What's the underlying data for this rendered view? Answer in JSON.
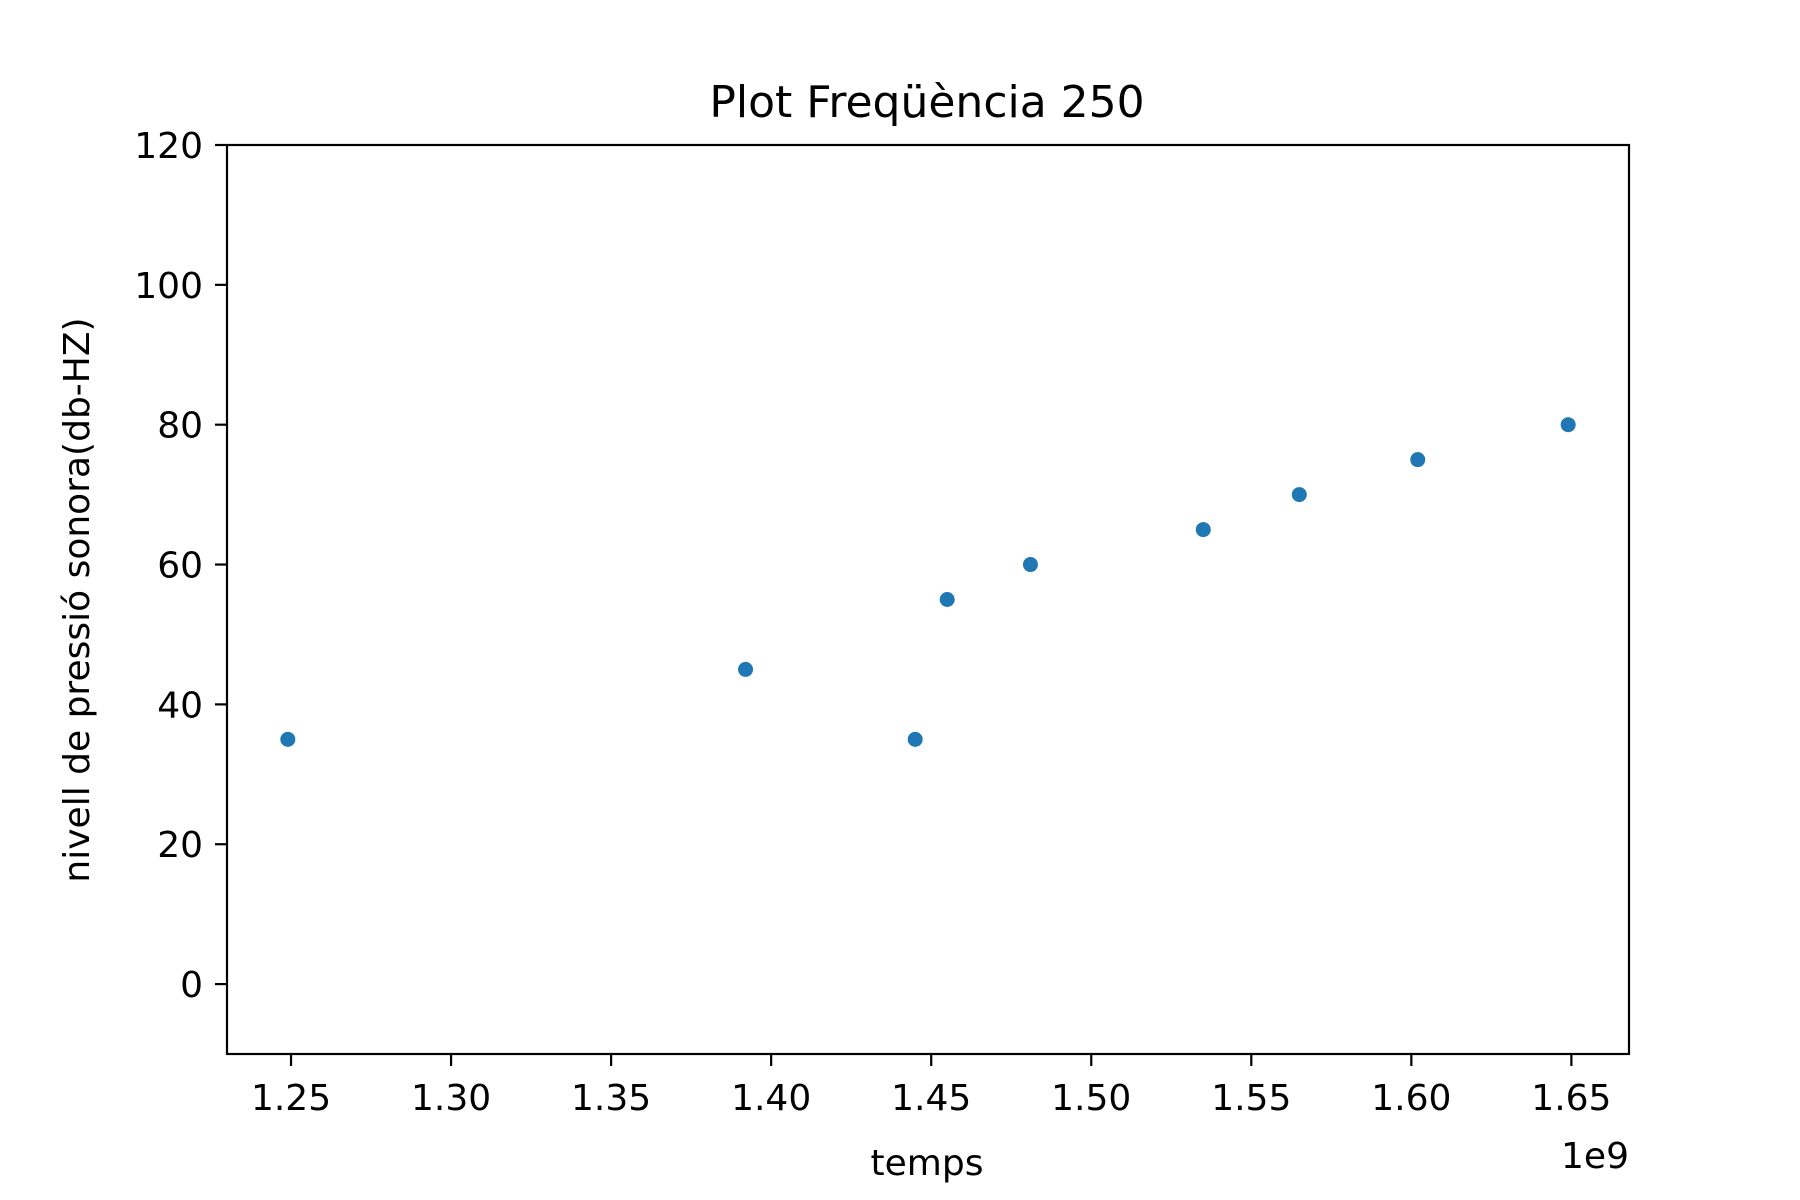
{
  "chart_data": {
    "type": "scatter",
    "title": "Plot Freqüència 250",
    "xlabel": "temps",
    "ylabel": "nivell de pressió sonora(db-HZ)",
    "x_offset_label": "1e9",
    "xlim": [
      1.23,
      1.668
    ],
    "ylim": [
      -10,
      120
    ],
    "x_ticks": [
      1.25,
      1.3,
      1.35,
      1.4,
      1.45,
      1.5,
      1.55,
      1.6,
      1.65
    ],
    "x_tick_labels": [
      "1.25",
      "1.30",
      "1.35",
      "1.40",
      "1.45",
      "1.50",
      "1.55",
      "1.60",
      "1.65"
    ],
    "y_ticks": [
      0,
      20,
      40,
      60,
      80,
      100,
      120
    ],
    "y_tick_labels": [
      "0",
      "20",
      "40",
      "60",
      "80",
      "100",
      "120"
    ],
    "grid": false,
    "marker_color": "#1f77b4",
    "series": [
      {
        "x": [
          1.249,
          1.392,
          1.445,
          1.455,
          1.481,
          1.535,
          1.565,
          1.602,
          1.649
        ],
        "y": [
          35,
          45,
          35,
          55,
          60,
          65,
          70,
          75,
          80
        ]
      }
    ]
  }
}
